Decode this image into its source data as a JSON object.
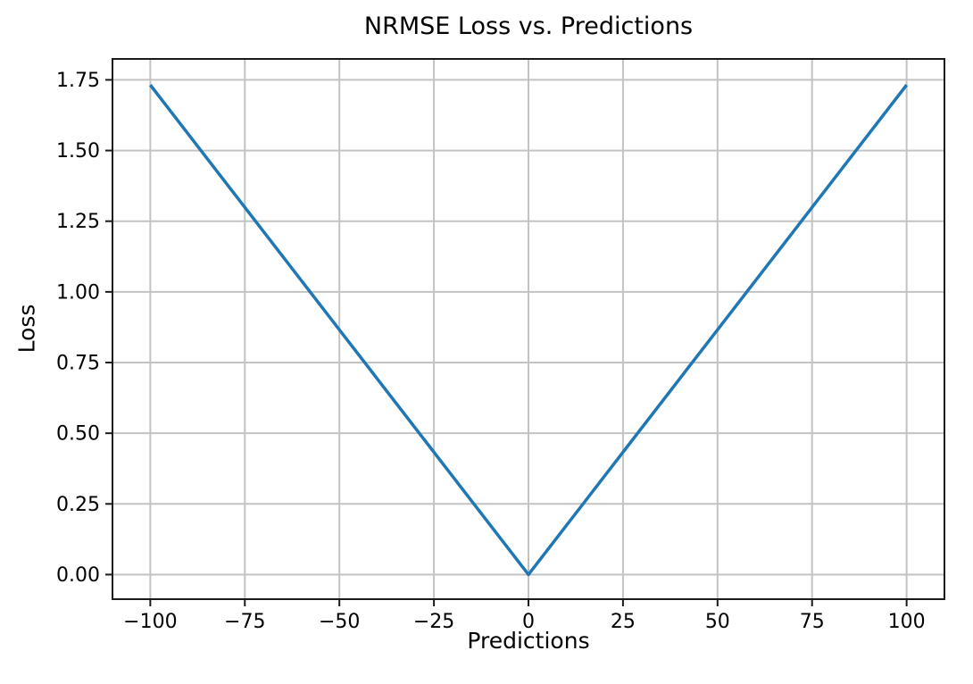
{
  "figure": {
    "background": "#ffffff"
  },
  "chart_data": {
    "type": "line",
    "title": "NRMSE Loss vs. Predictions",
    "xlabel": "Predictions",
    "ylabel": "Loss",
    "x": [
      -100,
      -75,
      -50,
      -25,
      0,
      25,
      50,
      75,
      100
    ],
    "series": [
      {
        "name": "NRMSE Loss",
        "values": [
          1.732,
          1.299,
          0.866,
          0.433,
          0.0,
          0.433,
          0.866,
          1.299,
          1.732
        ]
      }
    ],
    "xlim": [
      -110,
      110
    ],
    "ylim": [
      -0.087,
      1.824
    ],
    "xtick_values": [
      -100,
      -75,
      -50,
      -25,
      0,
      25,
      50,
      75,
      100
    ],
    "xtick_labels": [
      "−100",
      "−75",
      "−50",
      "−25",
      "0",
      "25",
      "50",
      "75",
      "100"
    ],
    "ytick_values": [
      0,
      0.25,
      0.5,
      0.75,
      1.0,
      1.25,
      1.5,
      1.75
    ],
    "ytick_labels": [
      "0.00",
      "0.25",
      "0.50",
      "0.75",
      "1.00",
      "1.25",
      "1.50",
      "1.75"
    ],
    "grid": true,
    "legend": "none",
    "colors": {
      "line": "#1f77b4",
      "grid": "#c3c3c3",
      "spine": "#1a1a1a",
      "text": "#000000"
    }
  }
}
